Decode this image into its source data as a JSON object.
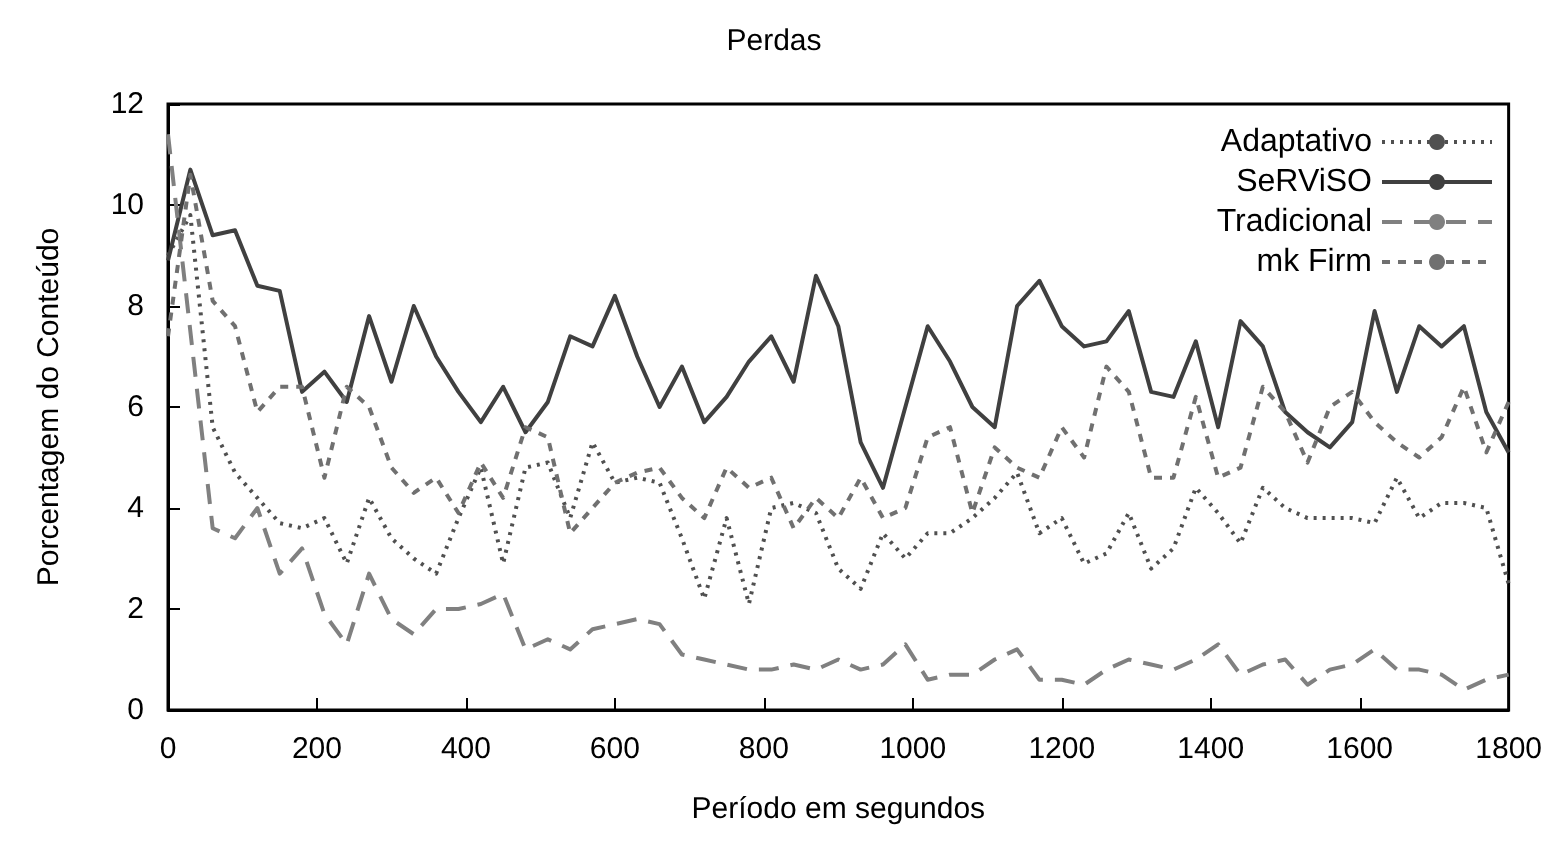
{
  "chart_data": {
    "type": "line",
    "title": "Perdas",
    "xlabel": "Período em segundos",
    "ylabel": "Porcentagem do Conteúdo",
    "x": [
      0,
      30,
      60,
      90,
      120,
      150,
      180,
      210,
      240,
      270,
      300,
      330,
      360,
      390,
      420,
      450,
      480,
      510,
      540,
      570,
      600,
      630,
      660,
      690,
      720,
      750,
      780,
      810,
      840,
      870,
      900,
      930,
      960,
      990,
      1020,
      1050,
      1080,
      1110,
      1140,
      1170,
      1200,
      1230,
      1260,
      1290,
      1320,
      1350,
      1380,
      1410,
      1440,
      1470,
      1500,
      1530,
      1560,
      1590,
      1620,
      1650,
      1680,
      1710,
      1740,
      1770,
      1800
    ],
    "series": [
      {
        "name": "Adaptativo",
        "color": "#505050",
        "line_style": "dotted",
        "values": [
          9.0,
          9.8,
          5.6,
          4.7,
          4.2,
          3.7,
          3.6,
          3.8,
          2.9,
          4.2,
          3.4,
          3.0,
          2.7,
          3.8,
          4.8,
          2.9,
          4.8,
          4.9,
          3.8,
          5.3,
          4.5,
          4.6,
          4.5,
          3.4,
          2.2,
          3.8,
          2.1,
          4.0,
          4.1,
          3.9,
          2.8,
          2.4,
          3.5,
          3.0,
          3.5,
          3.5,
          3.8,
          4.2,
          4.7,
          3.5,
          3.8,
          2.9,
          3.1,
          3.9,
          2.8,
          3.2,
          4.4,
          3.9,
          3.3,
          4.4,
          4.0,
          3.8,
          3.8,
          3.8,
          3.7,
          4.6,
          3.8,
          4.1,
          4.1,
          4.0,
          2.5
        ]
      },
      {
        "name": "SeRViSO",
        "color": "#404040",
        "line_style": "solid",
        "values": [
          8.9,
          10.7,
          9.4,
          9.5,
          8.4,
          8.3,
          6.3,
          6.7,
          6.1,
          7.8,
          6.5,
          8.0,
          7.0,
          6.3,
          5.7,
          6.4,
          5.5,
          6.1,
          7.4,
          7.2,
          8.2,
          7.0,
          6.0,
          6.8,
          5.7,
          6.2,
          6.9,
          7.4,
          6.5,
          8.6,
          7.6,
          5.3,
          4.4,
          6.0,
          7.6,
          6.9,
          6.0,
          5.6,
          8.0,
          8.5,
          7.6,
          7.2,
          7.3,
          7.9,
          6.3,
          6.2,
          7.3,
          5.6,
          7.7,
          7.2,
          5.9,
          5.5,
          5.2,
          5.7,
          7.9,
          6.3,
          7.6,
          7.2,
          7.6,
          5.9,
          5.1
        ]
      },
      {
        "name": "Tradicional",
        "color": "#808080",
        "line_style": "dashed",
        "values": [
          11.4,
          7.5,
          3.6,
          3.4,
          4.0,
          2.7,
          3.2,
          1.9,
          1.3,
          2.7,
          1.8,
          1.5,
          2.0,
          2.0,
          2.1,
          2.3,
          1.2,
          1.4,
          1.2,
          1.6,
          1.7,
          1.8,
          1.7,
          1.1,
          1.0,
          0.9,
          0.8,
          0.8,
          0.9,
          0.8,
          1.0,
          0.8,
          0.9,
          1.3,
          0.6,
          0.7,
          0.7,
          1.0,
          1.2,
          0.6,
          0.6,
          0.5,
          0.8,
          1.0,
          0.9,
          0.8,
          1.0,
          1.3,
          0.7,
          0.9,
          1.0,
          0.5,
          0.8,
          0.9,
          1.2,
          0.8,
          0.8,
          0.7,
          0.4,
          0.6,
          0.7
        ]
      },
      {
        "name": "mk Firm",
        "color": "#707070",
        "line_style": "shortdash",
        "values": [
          7.4,
          10.6,
          8.1,
          7.6,
          5.9,
          6.4,
          6.4,
          4.6,
          6.4,
          6.0,
          4.8,
          4.3,
          4.6,
          3.9,
          4.9,
          4.2,
          5.6,
          5.4,
          3.5,
          4.0,
          4.5,
          4.7,
          4.8,
          4.2,
          3.8,
          4.8,
          4.4,
          4.6,
          3.6,
          4.2,
          3.8,
          4.6,
          3.8,
          4.0,
          5.4,
          5.6,
          3.9,
          5.2,
          4.8,
          4.6,
          5.6,
          5.0,
          6.8,
          6.3,
          4.6,
          4.6,
          6.2,
          4.6,
          4.8,
          6.4,
          5.9,
          4.9,
          6.0,
          6.3,
          5.7,
          5.3,
          5.0,
          5.4,
          6.4,
          5.1,
          6.1
        ]
      }
    ],
    "xlim": [
      0,
      1800
    ],
    "xticks": [
      0,
      200,
      400,
      600,
      800,
      1000,
      1200,
      1400,
      1600,
      1800
    ],
    "ylim": [
      0,
      12
    ],
    "yticks": [
      0,
      2,
      4,
      6,
      8,
      10,
      12
    ],
    "grid": false,
    "legend": "top right",
    "marker": "none"
  }
}
